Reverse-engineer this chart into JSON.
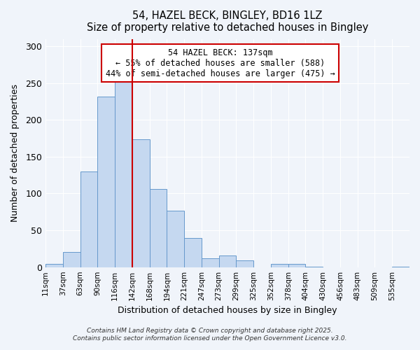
{
  "title": "54, HAZEL BECK, BINGLEY, BD16 1LZ",
  "subtitle": "Size of property relative to detached houses in Bingley",
  "xlabel": "Distribution of detached houses by size in Bingley",
  "ylabel": "Number of detached properties",
  "bin_labels": [
    "11sqm",
    "37sqm",
    "63sqm",
    "90sqm",
    "116sqm",
    "142sqm",
    "168sqm",
    "194sqm",
    "221sqm",
    "247sqm",
    "273sqm",
    "299sqm",
    "325sqm",
    "352sqm",
    "378sqm",
    "404sqm",
    "430sqm",
    "456sqm",
    "483sqm",
    "509sqm",
    "535sqm"
  ],
  "bar_heights": [
    4,
    21,
    130,
    232,
    253,
    174,
    106,
    77,
    40,
    12,
    16,
    9,
    0,
    4,
    4,
    1,
    0,
    0,
    0,
    0,
    1
  ],
  "bar_color": "#c5d8f0",
  "bar_edge_color": "#6699cc",
  "vline_x": 5,
  "vline_color": "#cc0000",
  "annotation_title": "54 HAZEL BECK: 137sqm",
  "annotation_line1": "← 55% of detached houses are smaller (588)",
  "annotation_line2": "44% of semi-detached houses are larger (475) →",
  "annotation_box_color": "#ffffff",
  "annotation_box_edge": "#cc0000",
  "ylim": [
    0,
    310
  ],
  "yticks": [
    0,
    50,
    100,
    150,
    200,
    250,
    300
  ],
  "footer1": "Contains HM Land Registry data © Crown copyright and database right 2025.",
  "footer2": "Contains public sector information licensed under the Open Government Licence v3.0.",
  "bg_color": "#f0f4fa"
}
